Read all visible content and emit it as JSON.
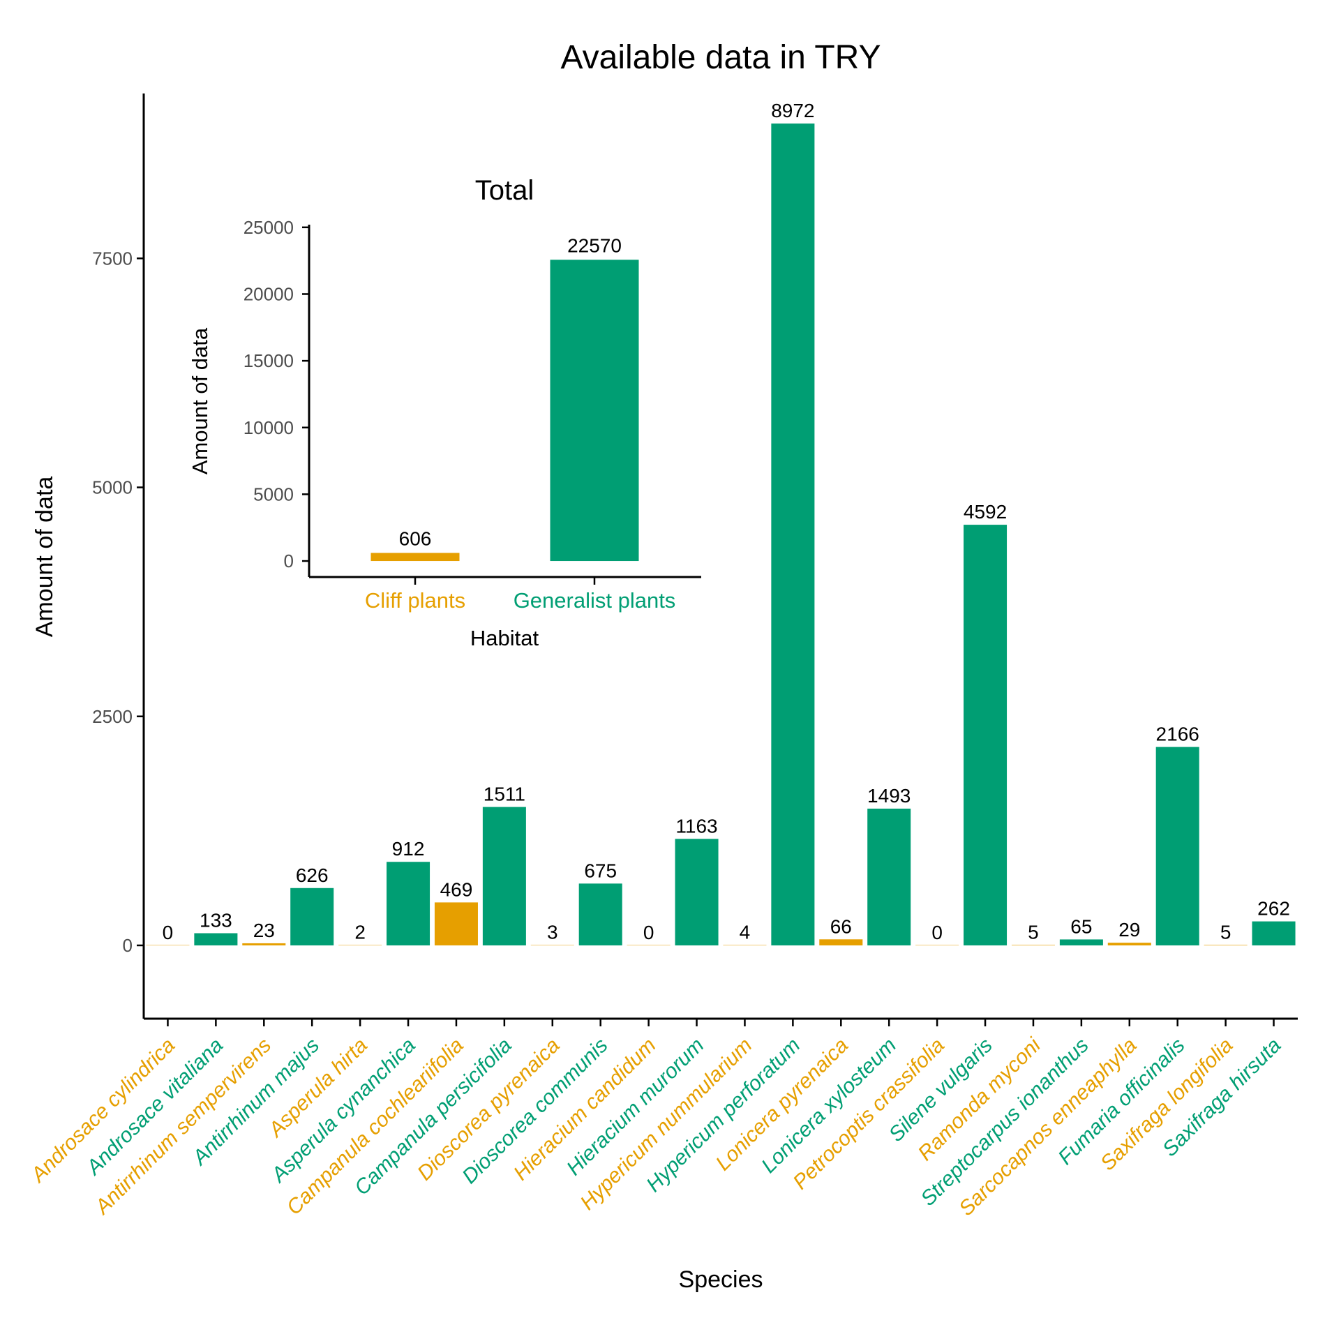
{
  "colors": {
    "cliff": "#E69F00",
    "generalist": "#009E73",
    "axis": "#000000",
    "tick_text": "#4d4d4d"
  },
  "chart_data": [
    {
      "type": "bar",
      "title": "Available data in TRY",
      "xlabel": "Species",
      "ylabel": "Amount of data",
      "ylim": [
        -800,
        9300
      ],
      "yticks": [
        0,
        2500,
        5000,
        7500
      ],
      "ytick_labels": [
        "0",
        "2500",
        "5000",
        "7500"
      ],
      "grid": false,
      "legend": "none",
      "categories": [
        "Androsace cylindrica",
        "Androsace vitaliana",
        "Antirrhinum sempervirens",
        "Antirrhinum majus",
        "Asperula hirta",
        "Asperula cynanchica",
        "Campanula cochleariifolia",
        "Campanula persicifolia",
        "Dioscorea pyrenaica",
        "Dioscorea communis",
        "Hieracium candidum",
        "Hieracium murorum",
        "Hypericum nummularium",
        "Hypericum perforatum",
        "Lonicera pyrenaica",
        "Lonicera xylosteum",
        "Petrocoptis crassifolia",
        "Silene vulgaris",
        "Ramonda myconi",
        "Streptocarpus ionanthus",
        "Sarcocapnos enneaphylla",
        "Fumaria officinalis",
        "Saxifraga longifolia",
        "Saxifraga hirsuta"
      ],
      "habitat": [
        "cliff",
        "generalist",
        "cliff",
        "generalist",
        "cliff",
        "generalist",
        "cliff",
        "generalist",
        "cliff",
        "generalist",
        "cliff",
        "generalist",
        "cliff",
        "generalist",
        "cliff",
        "generalist",
        "cliff",
        "generalist",
        "cliff",
        "generalist",
        "cliff",
        "generalist",
        "cliff",
        "generalist"
      ],
      "values": [
        0,
        133,
        23,
        626,
        2,
        912,
        469,
        1511,
        3,
        675,
        0,
        1163,
        4,
        8972,
        66,
        1493,
        0,
        4592,
        5,
        65,
        29,
        2166,
        5,
        262
      ]
    },
    {
      "type": "bar",
      "title": "Total",
      "xlabel": "Habitat",
      "ylabel": "Amount of data",
      "ylim": [
        -1200,
        25200
      ],
      "yticks": [
        0,
        5000,
        10000,
        15000,
        20000,
        25000
      ],
      "ytick_labels": [
        "0",
        "5000",
        "10000",
        "15000",
        "20000",
        "25000"
      ],
      "grid": false,
      "legend": "none",
      "categories": [
        "Cliff plants",
        "Generalist plants"
      ],
      "habitat": [
        "cliff",
        "generalist"
      ],
      "values": [
        606,
        22570
      ]
    }
  ]
}
